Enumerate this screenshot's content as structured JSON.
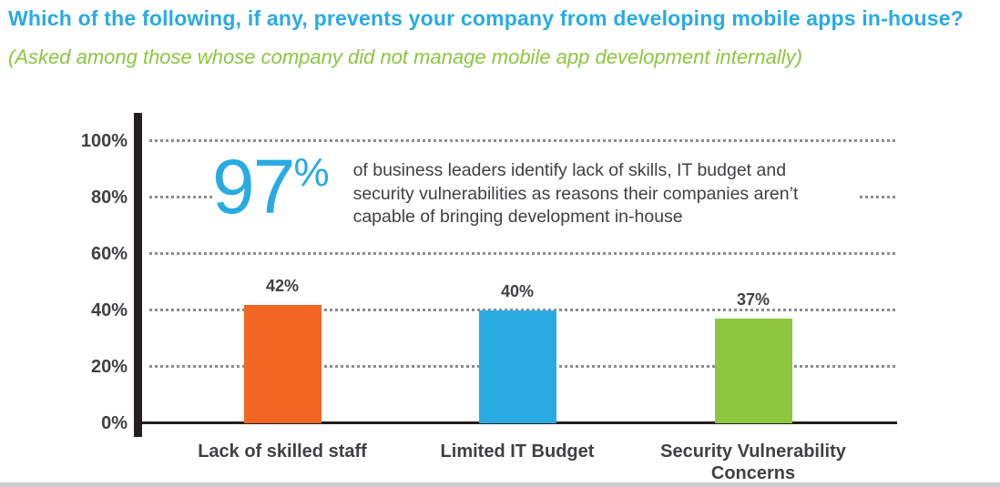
{
  "title": "Which of the following, if any, prevents your company from developing mobile apps in-house?",
  "subtitle": "(Asked among those whose company did not manage mobile app development internally)",
  "annotation": {
    "stat_number": "97",
    "stat_symbol": "%",
    "text": "of business leaders identify lack of skills, IT budget and security vulnerabilities as reasons their companies aren’t capable of bringing development in-house"
  },
  "chart_data": {
    "type": "bar",
    "categories": [
      "Lack of skilled staff",
      "Limited IT Budget",
      "Security Vulnerability Concerns"
    ],
    "values": [
      42,
      40,
      37
    ],
    "value_labels": [
      "42%",
      "40%",
      "37%"
    ],
    "bar_colors": [
      "#F26522",
      "#29ABE2",
      "#8DC63F"
    ],
    "title": "Which of the following, if any, prevents your company from developing mobile apps in-house?",
    "xlabel": "",
    "ylabel": "",
    "ylim": [
      0,
      100
    ],
    "yticks": [
      {
        "label": "100%",
        "value": 100
      },
      {
        "label": "80%",
        "value": 80
      },
      {
        "label": "60%",
        "value": 60
      },
      {
        "label": "40%",
        "value": 40
      },
      {
        "label": "20%",
        "value": 20
      },
      {
        "label": "0%",
        "value": 0
      }
    ],
    "grid": "horizontal-dotted",
    "legend": "none"
  },
  "colors": {
    "title_blue": "#29ABE2",
    "subtitle_green": "#8CC63F",
    "axis_text": "#414042",
    "grid_dots": "#8A8C8E",
    "axis_line": "#231F20"
  }
}
